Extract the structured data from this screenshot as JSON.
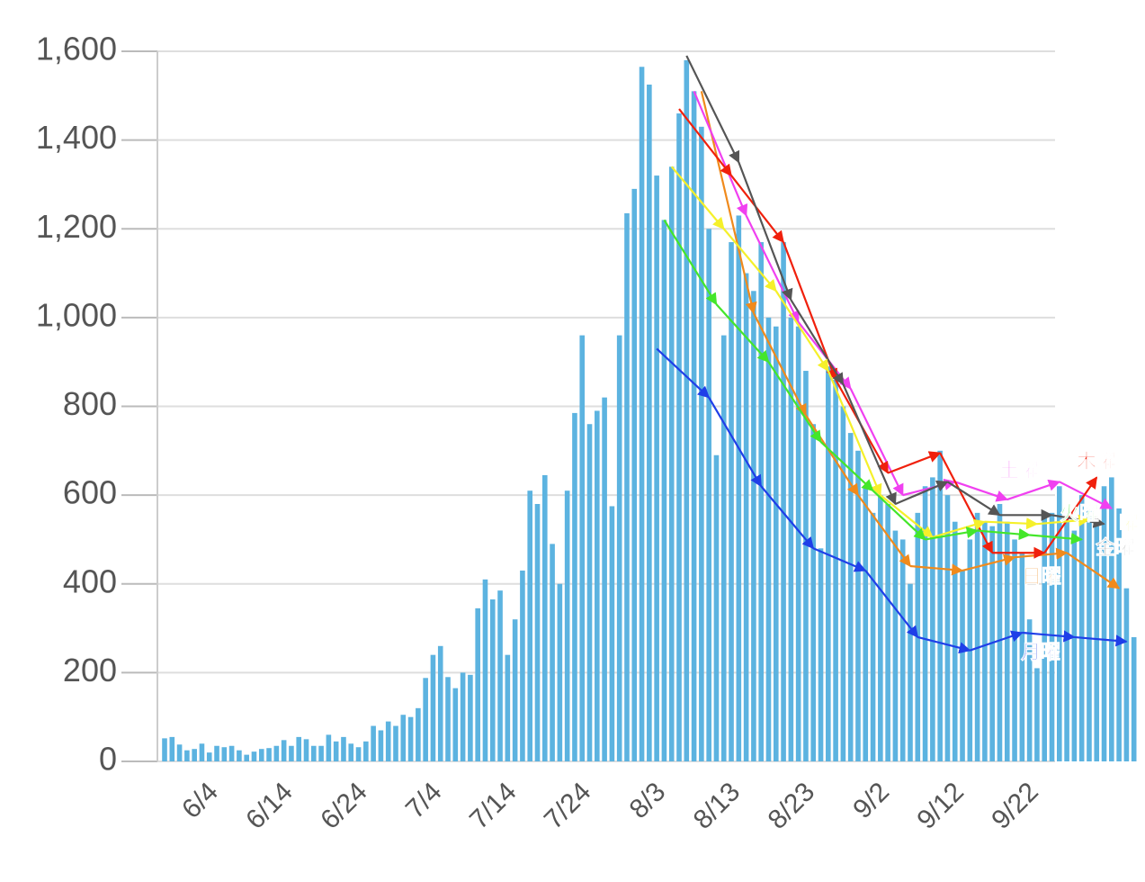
{
  "chart_data": {
    "type": "bar",
    "color": "#5cb3e0",
    "categories": [
      null,
      null,
      null,
      null,
      null,
      "6/4",
      null,
      null,
      null,
      null,
      null,
      null,
      null,
      null,
      null,
      "6/14",
      null,
      null,
      null,
      null,
      null,
      null,
      null,
      null,
      null,
      "6/24",
      null,
      null,
      null,
      null,
      null,
      null,
      null,
      null,
      null,
      "7/4",
      null,
      null,
      null,
      null,
      null,
      null,
      null,
      null,
      null,
      "7/14",
      null,
      null,
      null,
      null,
      null,
      null,
      null,
      null,
      null,
      "7/24",
      null,
      null,
      null,
      null,
      null,
      null,
      null,
      null,
      null,
      "8/3",
      null,
      null,
      null,
      null,
      null,
      null,
      null,
      null,
      null,
      "8/13",
      null,
      null,
      null,
      null,
      null,
      null,
      null,
      null,
      null,
      "8/23",
      null,
      null,
      null,
      null,
      null,
      null,
      null,
      null,
      null,
      "9/2",
      null,
      null,
      null,
      null,
      null,
      null,
      null,
      null,
      null,
      "9/12",
      null,
      null,
      null,
      null,
      null,
      null,
      null,
      null,
      null,
      "9/22",
      null,
      null,
      null,
      null,
      null,
      null,
      null,
      null,
      null,
      null,
      null,
      null,
      null,
      null,
      null
    ],
    "values": [
      52,
      55,
      38,
      25,
      28,
      40,
      20,
      35,
      32,
      35,
      25,
      15,
      22,
      28,
      30,
      35,
      48,
      35,
      55,
      50,
      35,
      35,
      60,
      45,
      55,
      40,
      32,
      45,
      80,
      70,
      90,
      80,
      105,
      100,
      120,
      188,
      240,
      260,
      190,
      165,
      200,
      195,
      345,
      410,
      365,
      385,
      240,
      320,
      430,
      610,
      580,
      645,
      490,
      400,
      610,
      785,
      960,
      760,
      790,
      820,
      575,
      960,
      1235,
      1290,
      1565,
      1525,
      1320,
      1220,
      1340,
      1460,
      1580,
      1510,
      1430,
      1200,
      690,
      960,
      1170,
      1230,
      1100,
      1060,
      1170,
      1000,
      980,
      1170,
      1000,
      980,
      880,
      760,
      480,
      890,
      860,
      800,
      740,
      700,
      620,
      560,
      600,
      580,
      520,
      500,
      400,
      560,
      620,
      640,
      700,
      600,
      540,
      430,
      500,
      560,
      540,
      530,
      580,
      540,
      500,
      470,
      320,
      210,
      560,
      560,
      620,
      540,
      520,
      600,
      570,
      530,
      620,
      640,
      570,
      390,
      280
    ],
    "ylim": [
      0,
      1600
    ],
    "yticks": [
      0,
      200,
      400,
      600,
      800,
      {
        "value": 1000,
        "label": "1,000"
      },
      {
        "value": 1200,
        "label": "1,200"
      },
      {
        "value": 1400,
        "label": "1,400"
      },
      {
        "value": 1600,
        "label": "1,600"
      }
    ],
    "grid": true,
    "series": [
      {
        "name": "月曜",
        "color": "#1f3fe8",
        "values": [
          null,
          null,
          null,
          null,
          null,
          null,
          null,
          null,
          null,
          null,
          null,
          null,
          null,
          null,
          null,
          null,
          null,
          null,
          null,
          null,
          null,
          null,
          null,
          null,
          null,
          null,
          null,
          null,
          null,
          null,
          null,
          null,
          null,
          null,
          null,
          null,
          null,
          null,
          null,
          null,
          null,
          null,
          null,
          null,
          null,
          null,
          null,
          null,
          null,
          null,
          null,
          null,
          null,
          null,
          null,
          null,
          null,
          null,
          null,
          null,
          null,
          null,
          null,
          null,
          null,
          null,
          930,
          null,
          null,
          null,
          null,
          null,
          null,
          820,
          null,
          null,
          null,
          null,
          null,
          null,
          620,
          null,
          null,
          null,
          null,
          null,
          null,
          480,
          null,
          null,
          null,
          null,
          null,
          null,
          430,
          null,
          null,
          null,
          null,
          null,
          null,
          280,
          null,
          null,
          null,
          null,
          null,
          null,
          250,
          null,
          null,
          null,
          null,
          null,
          null,
          290,
          null,
          null,
          null,
          null,
          null,
          null,
          280,
          null,
          null,
          null,
          null,
          null,
          null,
          270,
          null
        ]
      },
      {
        "name": "日曜",
        "color": "#f08a1c",
        "values": [
          null,
          null,
          null,
          null,
          null,
          null,
          null,
          null,
          null,
          null,
          null,
          null,
          null,
          null,
          null,
          null,
          null,
          null,
          null,
          null,
          null,
          null,
          null,
          null,
          null,
          null,
          null,
          null,
          null,
          null,
          null,
          null,
          null,
          null,
          null,
          null,
          null,
          null,
          null,
          null,
          null,
          null,
          null,
          null,
          null,
          null,
          null,
          null,
          null,
          null,
          null,
          null,
          null,
          null,
          null,
          null,
          null,
          null,
          null,
          null,
          null,
          null,
          null,
          null,
          null,
          null,
          null,
          null,
          null,
          null,
          null,
          null,
          1510,
          null,
          null,
          null,
          null,
          null,
          null,
          1010,
          null,
          null,
          null,
          null,
          null,
          null,
          780,
          null,
          null,
          null,
          null,
          null,
          null,
          600,
          null,
          null,
          null,
          null,
          null,
          null,
          440,
          null,
          null,
          null,
          null,
          null,
          null,
          430,
          null,
          null,
          null,
          null,
          null,
          null,
          460,
          null,
          null,
          null,
          null,
          null,
          null,
          470,
          null,
          null,
          null,
          null,
          null,
          null,
          390,
          null,
          null
        ]
      },
      {
        "name": "土曜",
        "color": "#f040f0",
        "values": [
          null,
          null,
          null,
          null,
          null,
          null,
          null,
          null,
          null,
          null,
          null,
          null,
          null,
          null,
          null,
          null,
          null,
          null,
          null,
          null,
          null,
          null,
          null,
          null,
          null,
          null,
          null,
          null,
          null,
          null,
          null,
          null,
          null,
          null,
          null,
          null,
          null,
          null,
          null,
          null,
          null,
          null,
          null,
          null,
          null,
          null,
          null,
          null,
          null,
          null,
          null,
          null,
          null,
          null,
          null,
          null,
          null,
          null,
          null,
          null,
          null,
          null,
          null,
          null,
          null,
          null,
          null,
          null,
          null,
          null,
          null,
          1510,
          null,
          null,
          null,
          null,
          null,
          null,
          1230,
          null,
          null,
          null,
          null,
          null,
          null,
          990,
          null,
          null,
          null,
          null,
          null,
          null,
          840,
          null,
          null,
          null,
          null,
          null,
          null,
          600,
          null,
          null,
          null,
          null,
          null,
          null,
          630,
          null,
          null,
          null,
          null,
          null,
          null,
          590,
          null,
          null,
          null,
          null,
          null,
          null,
          630,
          null,
          null,
          null,
          null,
          null,
          null,
          570,
          null,
          null,
          null
        ]
      },
      {
        "name": "木曜",
        "color": "#f0200c",
        "values": [
          null,
          null,
          null,
          null,
          null,
          null,
          null,
          null,
          null,
          null,
          null,
          null,
          null,
          null,
          null,
          null,
          null,
          null,
          null,
          null,
          null,
          null,
          null,
          null,
          null,
          null,
          null,
          null,
          null,
          null,
          null,
          null,
          null,
          null,
          null,
          null,
          null,
          null,
          null,
          null,
          null,
          null,
          null,
          null,
          null,
          null,
          null,
          null,
          null,
          null,
          null,
          null,
          null,
          null,
          null,
          null,
          null,
          null,
          null,
          null,
          null,
          null,
          null,
          null,
          null,
          null,
          null,
          null,
          null,
          1470,
          null,
          null,
          null,
          null,
          null,
          null,
          1320,
          null,
          null,
          null,
          null,
          null,
          null,
          1170,
          null,
          null,
          null,
          null,
          null,
          null,
          860,
          null,
          null,
          null,
          null,
          null,
          null,
          650,
          null,
          null,
          null,
          null,
          null,
          null,
          695,
          null,
          null,
          null,
          null,
          null,
          null,
          470,
          null,
          null,
          null,
          null,
          null,
          null,
          470,
          null,
          null,
          null,
          null,
          null,
          null,
          640,
          null,
          null,
          null,
          null,
          null
        ]
      },
      {
        "name": "金曜",
        "color": "#555555",
        "values": [
          null,
          null,
          null,
          null,
          null,
          null,
          null,
          null,
          null,
          null,
          null,
          null,
          null,
          null,
          null,
          null,
          null,
          null,
          null,
          null,
          null,
          null,
          null,
          null,
          null,
          null,
          null,
          null,
          null,
          null,
          null,
          null,
          null,
          null,
          null,
          null,
          null,
          null,
          null,
          null,
          null,
          null,
          null,
          null,
          null,
          null,
          null,
          null,
          null,
          null,
          null,
          null,
          null,
          null,
          null,
          null,
          null,
          null,
          null,
          null,
          null,
          null,
          null,
          null,
          null,
          null,
          null,
          null,
          null,
          null,
          1590,
          null,
          null,
          null,
          null,
          null,
          null,
          1350,
          null,
          null,
          null,
          null,
          null,
          null,
          1040,
          null,
          null,
          null,
          null,
          null,
          null,
          850,
          null,
          null,
          null,
          null,
          null,
          null,
          580,
          null,
          null,
          null,
          null,
          null,
          null,
          630,
          null,
          null,
          null,
          null,
          null,
          null,
          555,
          null,
          null,
          null,
          null,
          null,
          null,
          555,
          null,
          null,
          null,
          null,
          null,
          null,
          535,
          null,
          null,
          null,
          null
        ]
      },
      {
        "name": "曜",
        "color": "#f5f02a",
        "values": [
          null,
          null,
          null,
          null,
          null,
          null,
          null,
          null,
          null,
          null,
          null,
          null,
          null,
          null,
          null,
          null,
          null,
          null,
          null,
          null,
          null,
          null,
          null,
          null,
          null,
          null,
          null,
          null,
          null,
          null,
          null,
          null,
          null,
          null,
          null,
          null,
          null,
          null,
          null,
          null,
          null,
          null,
          null,
          null,
          null,
          null,
          null,
          null,
          null,
          null,
          null,
          null,
          null,
          null,
          null,
          null,
          null,
          null,
          null,
          null,
          null,
          null,
          null,
          null,
          null,
          null,
          null,
          null,
          1340,
          null,
          null,
          null,
          null,
          null,
          null,
          1200,
          null,
          null,
          null,
          null,
          null,
          null,
          1060,
          null,
          null,
          null,
          null,
          null,
          null,
          880,
          null,
          null,
          null,
          null,
          null,
          null,
          600,
          null,
          null,
          null,
          null,
          null,
          null,
          505,
          null,
          null,
          null,
          null,
          null,
          null,
          540,
          null,
          null,
          null,
          null,
          null,
          null,
          535,
          null,
          null,
          null,
          null,
          null,
          null,
          545,
          null,
          null,
          null,
          null,
          null,
          null
        ]
      },
      {
        "name": "火曜",
        "color": "#44e62a",
        "values": [
          null,
          null,
          null,
          null,
          null,
          null,
          null,
          null,
          null,
          null,
          null,
          null,
          null,
          null,
          null,
          null,
          null,
          null,
          null,
          null,
          null,
          null,
          null,
          null,
          null,
          null,
          null,
          null,
          null,
          null,
          null,
          null,
          null,
          null,
          null,
          null,
          null,
          null,
          null,
          null,
          null,
          null,
          null,
          null,
          null,
          null,
          null,
          null,
          null,
          null,
          null,
          null,
          null,
          null,
          null,
          null,
          null,
          null,
          null,
          null,
          null,
          null,
          null,
          null,
          null,
          null,
          null,
          1220,
          null,
          null,
          null,
          null,
          null,
          null,
          1030,
          null,
          null,
          null,
          null,
          null,
          null,
          900,
          null,
          null,
          null,
          null,
          null,
          null,
          720,
          null,
          null,
          null,
          null,
          null,
          null,
          610,
          null,
          null,
          null,
          null,
          null,
          null,
          500,
          null,
          null,
          null,
          null,
          null,
          null,
          520,
          null,
          null,
          null,
          null,
          null,
          null,
          510,
          null,
          null,
          null,
          null,
          null,
          null,
          500,
          null,
          null,
          null,
          null,
          null,
          null,
          null
        ]
      }
    ]
  }
}
